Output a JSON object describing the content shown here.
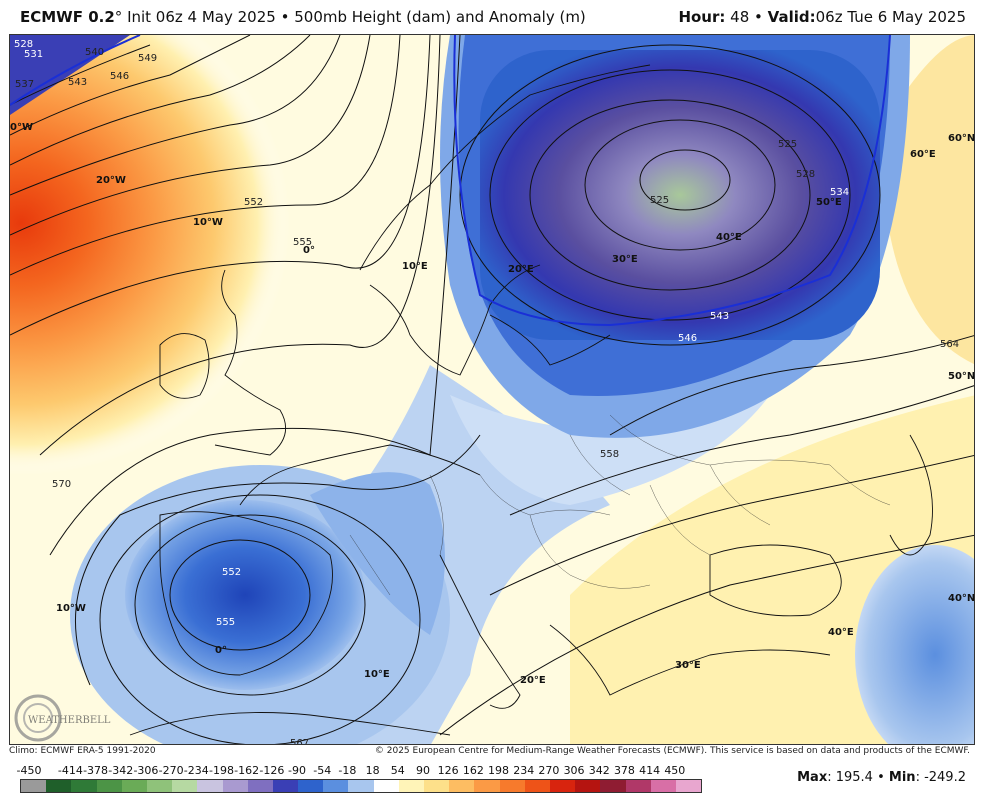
{
  "header": {
    "model": "ECMWF 0.2",
    "degree": "°",
    "init": "Init 06z 4 May 2025",
    "bullet": "•",
    "product": "500mb Height (dam) and Anomaly (m)",
    "hour_label": "Hour:",
    "hour_value": "48",
    "valid_label": "Valid:",
    "valid_value": "06z Tue 6 May 2025"
  },
  "map": {
    "lon_labels": [
      "0°W",
      "20°W",
      "10°W",
      "0°",
      "10°E",
      "20°E",
      "30°E",
      "40°E",
      "50°E",
      "60°E",
      "10°W",
      "0°",
      "10°E",
      "20°E",
      "30°E",
      "40°E"
    ],
    "lat_labels": [
      "60°N",
      "50°N",
      "40°N"
    ],
    "contour_labels": [
      "528",
      "531",
      "537",
      "540",
      "543",
      "546",
      "549",
      "552",
      "555",
      "558",
      "564",
      "570",
      "525",
      "525",
      "528",
      "534",
      "543",
      "546",
      "552",
      "555",
      "567"
    ],
    "high_anomaly_color": "#e83a0c",
    "low_anomaly_color": "#2a4fbf",
    "trough_core_color": "#5a4fa0",
    "watermark": "WEATHERBELL"
  },
  "footer": {
    "climo": "Climo: ECMWF ERA-5 1991-2020",
    "copyright": "© 2025 European Centre for Medium-Range Weather Forecasts (ECMWF). This service is based on data and products of the ECMWF."
  },
  "colorbar": {
    "ticks": [
      "-450",
      "-414",
      "-378",
      "-342",
      "-306",
      "-270",
      "-234",
      "-198",
      "-162",
      "-126",
      "-90",
      "-54",
      "-18",
      "18",
      "54",
      "90",
      "126",
      "162",
      "198",
      "234",
      "270",
      "306",
      "342",
      "378",
      "414",
      "450"
    ],
    "colors": [
      "#9a9a9a",
      "#1f5f2a",
      "#2f7a37",
      "#4c9446",
      "#6aab57",
      "#8fc27a",
      "#b6d9a2",
      "#c9c4e0",
      "#a99ad0",
      "#7f6fc0",
      "#3a3fb5",
      "#2e63cc",
      "#5b8fdf",
      "#a8c6ee",
      "#ffffff",
      "#fff4b8",
      "#fde08a",
      "#fdbd62",
      "#fb9a45",
      "#f77a2c",
      "#ee5318",
      "#d8240e",
      "#b51410",
      "#8f1c32",
      "#b03868",
      "#d86fa6",
      "#e8a6cf"
    ]
  },
  "maxmin": {
    "max_label": "Max",
    "max_value": "195.4",
    "sep": "•",
    "min_label": "Min",
    "min_value": "-249.2"
  }
}
